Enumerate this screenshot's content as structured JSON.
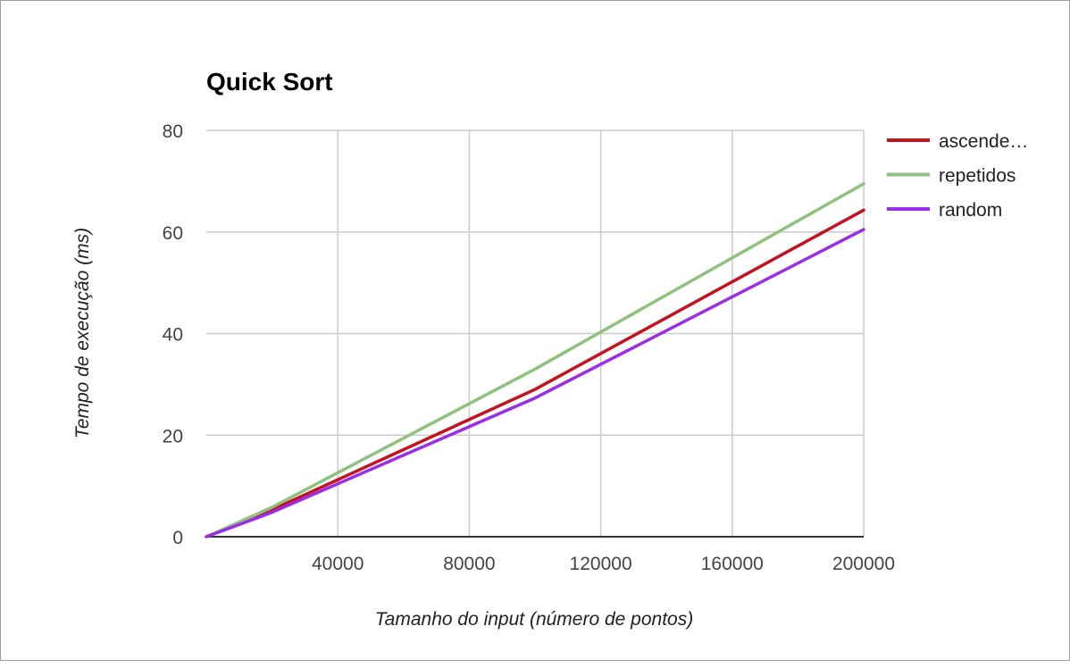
{
  "chart_data": {
    "type": "line",
    "title": "Quick Sort",
    "xlabel": "Tamanho do input (número de pontos)",
    "ylabel": "Tempo de execução (ms)",
    "xlim": [
      0,
      200000
    ],
    "ylim": [
      0,
      80
    ],
    "x_ticks": [
      "40000",
      "80000",
      "120000",
      "160000",
      "200000"
    ],
    "y_ticks": [
      "0",
      "20",
      "40",
      "60",
      "80"
    ],
    "grid": true,
    "legend_position": "right",
    "x": [
      0,
      20000,
      100000,
      200000
    ],
    "series": [
      {
        "name": "ascende…",
        "color": "#c4121f",
        "values": [
          0,
          5.3,
          29,
          64.3
        ]
      },
      {
        "name": "repetidos",
        "color": "#8fc17f",
        "values": [
          0,
          5.8,
          33,
          69.5
        ]
      },
      {
        "name": "random",
        "color": "#9a2ee8",
        "values": [
          0,
          4.8,
          27.3,
          60.5
        ]
      }
    ]
  }
}
